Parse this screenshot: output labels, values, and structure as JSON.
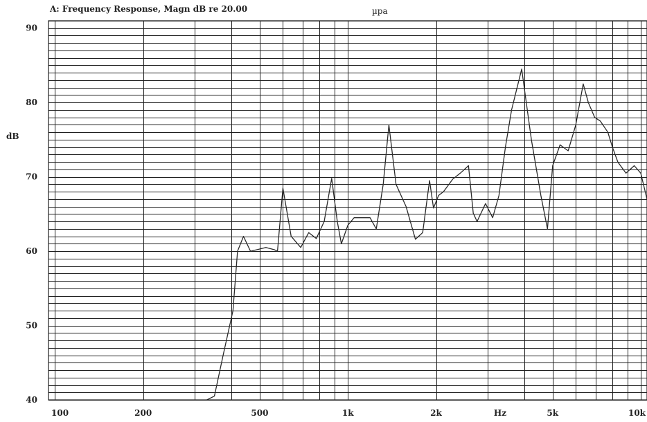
{
  "chart_data": {
    "type": "line",
    "title": "A: Frequency Response, Magn dB re 20.00",
    "unit": "µpa",
    "ylabel": "dB",
    "xlabel": "Hz",
    "x_scale": "log",
    "xlim": [
      95,
      10500
    ],
    "ylim": [
      40,
      91
    ],
    "grid": true,
    "y_ticks": [
      {
        "value": 90,
        "label": "90"
      },
      {
        "value": 80,
        "label": "80"
      },
      {
        "value": 70,
        "label": "70"
      },
      {
        "value": 60,
        "label": "60"
      },
      {
        "value": 50,
        "label": "50"
      },
      {
        "value": 40,
        "label": "40"
      }
    ],
    "x_ticks": [
      {
        "value": 100,
        "label": "100"
      },
      {
        "value": 200,
        "label": "200"
      },
      {
        "value": 500,
        "label": "500"
      },
      {
        "value": 1000,
        "label": "1k"
      },
      {
        "value": 2000,
        "label": "2k"
      },
      {
        "value": 5000,
        "label": "5k"
      },
      {
        "value": 10000,
        "label": "10k"
      }
    ],
    "series": [
      {
        "x": [
          330,
          350,
          375,
          405,
          420,
          440,
          465,
          490,
          525,
          560,
          575,
          600,
          640,
          690,
          735,
          780,
          830,
          880,
          920,
          950,
          1000,
          1050,
          1130,
          1190,
          1250,
          1320,
          1380,
          1460,
          1580,
          1700,
          1800,
          1900,
          1960,
          2040,
          2120,
          2280,
          2420,
          2580,
          2680,
          2760,
          2950,
          3120,
          3280,
          3450,
          3620,
          3920,
          4230,
          4560,
          4800,
          5000,
          5300,
          5650,
          6000,
          6360,
          6620,
          6960,
          7280,
          7720,
          8000,
          8350,
          8900,
          9500,
          10000,
          10500
        ],
        "y": [
          40,
          40.5,
          46,
          52,
          60,
          62,
          60,
          60.2,
          60.5,
          60.2,
          60,
          68.5,
          62,
          60.5,
          62.5,
          61.7,
          64,
          69.8,
          64,
          61,
          63.5,
          64.5,
          64.5,
          64.5,
          63,
          69,
          77,
          69,
          66,
          61.6,
          62.5,
          69.5,
          65.8,
          67.5,
          68,
          69.7,
          70.5,
          71.5,
          65.1,
          64,
          66.4,
          64.5,
          67.5,
          74,
          79,
          84.5,
          75,
          67.5,
          63,
          71.5,
          74.3,
          73.5,
          77,
          82.5,
          80,
          78,
          77.5,
          76,
          74,
          72,
          70.5,
          71.5,
          70.5,
          67
        ]
      }
    ]
  }
}
